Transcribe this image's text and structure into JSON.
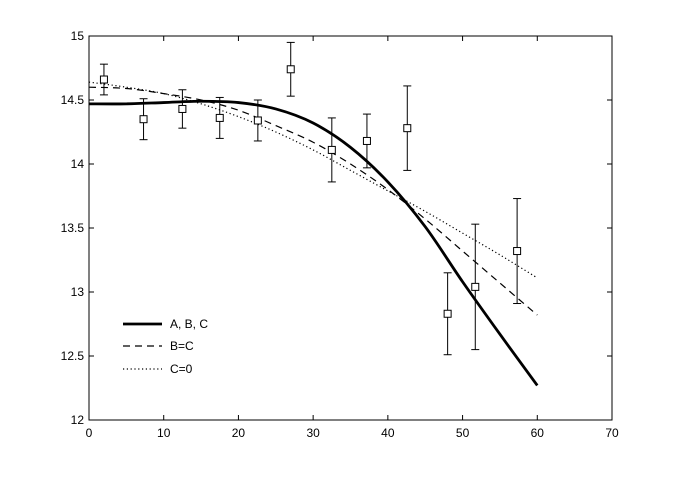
{
  "chart_data": {
    "type": "line",
    "title": "",
    "xlabel": "",
    "ylabel": "",
    "xlim": [
      0,
      70
    ],
    "ylim": [
      12,
      15
    ],
    "xticks": [
      0,
      10,
      20,
      30,
      40,
      50,
      60,
      70
    ],
    "yticks": [
      12,
      12.5,
      13,
      13.5,
      14,
      14.5,
      15
    ],
    "xtick_labels": [
      "0",
      "10",
      "20",
      "30",
      "40",
      "50",
      "60",
      "70"
    ],
    "ytick_labels": [
      "12",
      "12.5",
      "13",
      "13.5",
      "14",
      "14.5",
      "15"
    ],
    "grid": false,
    "legend_position": "bottom-left",
    "series": [
      {
        "name": "A, B, C",
        "style": "solid-thick",
        "x": [
          0,
          5,
          10,
          15,
          20,
          25,
          30,
          35,
          40,
          45,
          50,
          55,
          60
        ],
        "y": [
          14.47,
          14.47,
          14.48,
          14.49,
          14.48,
          14.43,
          14.32,
          14.13,
          13.86,
          13.51,
          13.08,
          12.67,
          12.27
        ]
      },
      {
        "name": "B=C",
        "style": "dashed",
        "x": [
          0,
          5,
          10,
          15,
          20,
          25,
          30,
          35,
          40,
          45,
          50,
          55,
          60
        ],
        "y": [
          14.6,
          14.59,
          14.55,
          14.5,
          14.42,
          14.3,
          14.17,
          14.0,
          13.8,
          13.57,
          13.32,
          13.07,
          12.82
        ]
      },
      {
        "name": "C=0",
        "style": "dotted",
        "x": [
          0,
          5,
          10,
          15,
          20,
          25,
          30,
          35,
          40,
          45,
          50,
          55,
          60
        ],
        "y": [
          14.64,
          14.6,
          14.55,
          14.47,
          14.37,
          14.25,
          14.11,
          13.95,
          13.79,
          13.63,
          13.46,
          13.29,
          13.11
        ]
      }
    ],
    "observations": {
      "marker": "open-square",
      "x": [
        2,
        7.3,
        12.5,
        17.5,
        22.6,
        27,
        32.5,
        37.2,
        42.6,
        48,
        51.7,
        57.3
      ],
      "y": [
        14.66,
        14.35,
        14.43,
        14.36,
        14.34,
        14.74,
        14.11,
        14.18,
        14.28,
        12.83,
        13.04,
        13.32
      ],
      "err_low": [
        0.12,
        0.16,
        0.15,
        0.16,
        0.16,
        0.21,
        0.25,
        0.21,
        0.33,
        0.32,
        0.49,
        0.41
      ],
      "err_high": [
        0.12,
        0.16,
        0.15,
        0.16,
        0.16,
        0.21,
        0.25,
        0.21,
        0.33,
        0.32,
        0.49,
        0.41
      ]
    }
  }
}
